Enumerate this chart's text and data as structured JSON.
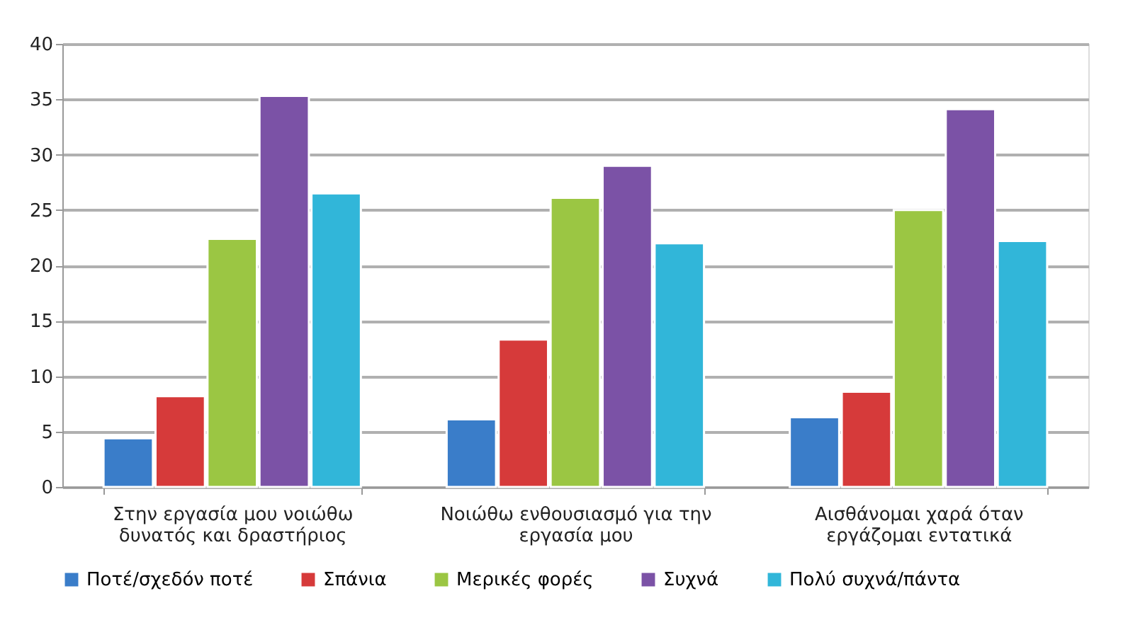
{
  "chart_data": {
    "type": "bar",
    "categories": [
      "Στην εργασία μου νοιώθω δυνατός και δραστήριος",
      "Νοιώθω ενθουσιασμό για την εργασία μου",
      "Αισθάνομαι χαρά όταν εργάζομαι εντατικά"
    ],
    "series": [
      {
        "name": "Ποτέ/σχεδόν ποτέ",
        "color": "#3a7dc9",
        "values": [
          4.4,
          6.1,
          6.3
        ]
      },
      {
        "name": "Σπάνια",
        "color": "#d63a3a",
        "values": [
          8.2,
          13.3,
          8.6
        ]
      },
      {
        "name": "Μερικές φορές",
        "color": "#9bc643",
        "values": [
          22.4,
          26.1,
          25.0
        ]
      },
      {
        "name": "Συχνά",
        "color": "#7b52a6",
        "values": [
          35.3,
          29.0,
          34.1
        ]
      },
      {
        "name": "Πολύ συχνά/πάντα",
        "color": "#31b6d9",
        "values": [
          26.5,
          22.0,
          22.2
        ]
      }
    ],
    "ylim": [
      0,
      40
    ],
    "yticks": [
      0,
      5,
      10,
      15,
      20,
      25,
      30,
      35,
      40
    ],
    "grid": "y",
    "legend": "bottom"
  }
}
